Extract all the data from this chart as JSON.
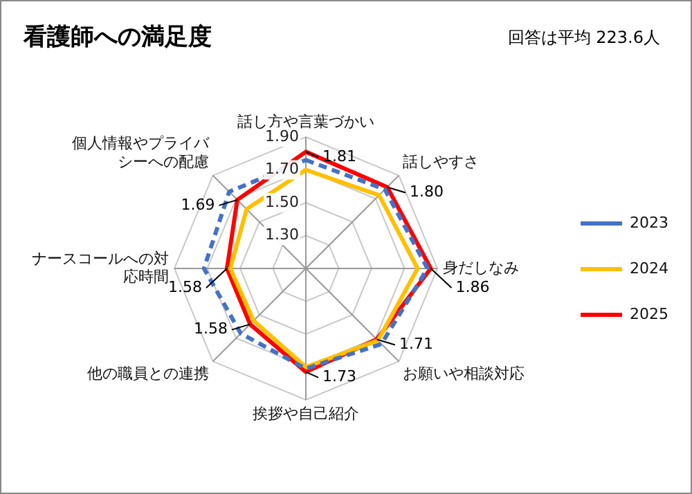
{
  "chart_data": {
    "type": "radar",
    "title": "看護師への満足度",
    "annotations": [
      "回答は平均 223.6人"
    ],
    "categories": [
      "話し方や言葉づかい",
      "話しやすさ",
      "身だしなみ",
      "お願いや相談対応",
      "挨拶や自己紹介",
      "他の職員との連携",
      "ナースコールへの対応時間",
      "個人情報やプライバシーへの配慮"
    ],
    "series": [
      {
        "name": "2023",
        "color": "#4472c4",
        "line_style": "dashed",
        "values": [
          1.76,
          1.78,
          1.84,
          1.75,
          1.71,
          1.66,
          1.72,
          1.76
        ]
      },
      {
        "name": "2024",
        "color": "#ffc000",
        "values": [
          1.7,
          1.73,
          1.78,
          1.72,
          1.7,
          1.55,
          1.56,
          1.61
        ]
      },
      {
        "name": "2025",
        "color": "#ff0000",
        "values": [
          1.81,
          1.8,
          1.86,
          1.71,
          1.73,
          1.58,
          1.58,
          1.69
        ],
        "value_labels": [
          "1.81",
          "1.80",
          "1.86",
          "1.71",
          "1.73",
          "1.58",
          "1.58",
          "1.69"
        ]
      }
    ],
    "ylim": [
      1.1,
      1.9
    ],
    "yticks": [
      {
        "value": 1.3,
        "label": "1.30"
      },
      {
        "value": 1.5,
        "label": "1.50"
      },
      {
        "value": 1.7,
        "label": "1.70"
      },
      {
        "value": 1.9,
        "label": "1.90"
      }
    ],
    "grid": true,
    "legend": "right",
    "marker": "none"
  }
}
